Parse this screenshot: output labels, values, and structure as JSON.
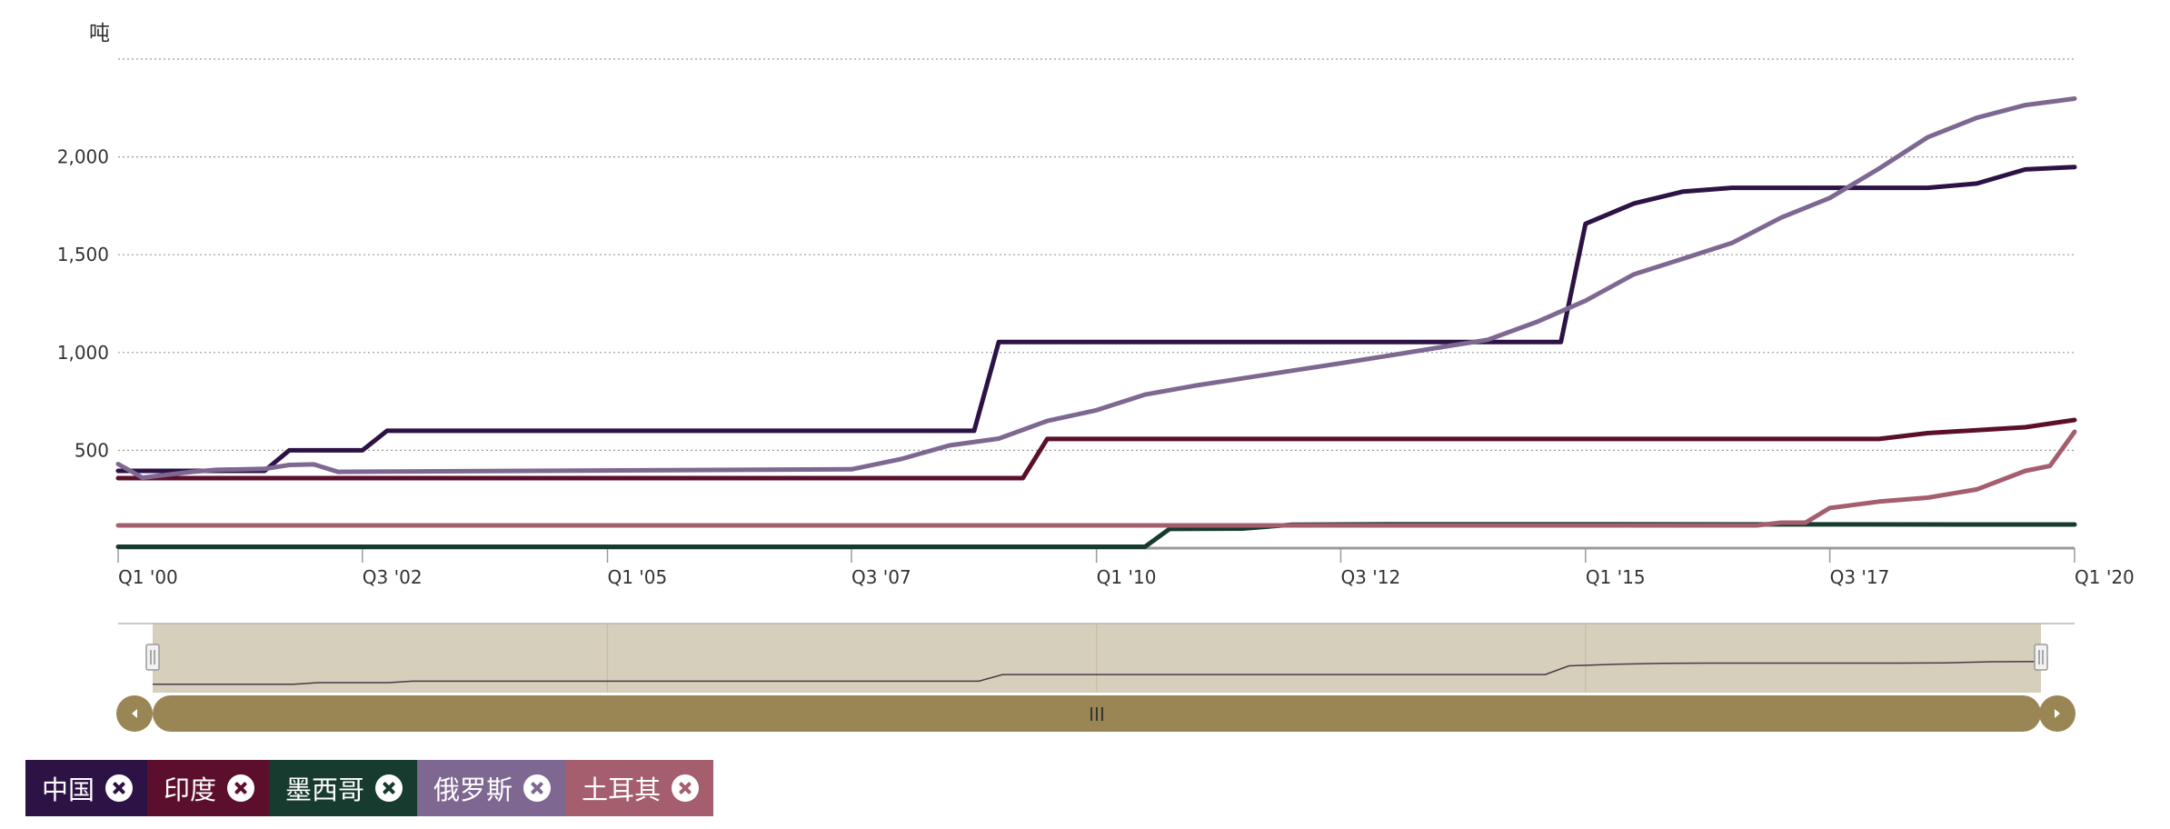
{
  "chart_data": {
    "type": "line",
    "unit_label": "吨",
    "ylim": [
      0,
      2500
    ],
    "y_ticks": [
      {
        "value": 500,
        "label": "500"
      },
      {
        "value": 1000,
        "label": "1,000"
      },
      {
        "value": 1500,
        "label": "1,500"
      },
      {
        "value": 2000,
        "label": "2,000"
      }
    ],
    "x_range": [
      "2000-01-01",
      "2020-01-01"
    ],
    "x_ticks": [
      {
        "date": "2000-01-01",
        "label": "Q1 '00"
      },
      {
        "date": "2002-07-01",
        "label": "Q3 '02"
      },
      {
        "date": "2005-01-01",
        "label": "Q1 '05"
      },
      {
        "date": "2007-07-01",
        "label": "Q3 '07"
      },
      {
        "date": "2010-01-01",
        "label": "Q1 '10"
      },
      {
        "date": "2012-07-01",
        "label": "Q3 '12"
      },
      {
        "date": "2015-01-01",
        "label": "Q1 '15"
      },
      {
        "date": "2017-07-01",
        "label": "Q3 '17"
      },
      {
        "date": "2020-01-01",
        "label": "Q1 '20"
      }
    ],
    "grid": "horizontal dotted",
    "legend_position": "bottom-left",
    "series": [
      {
        "name": "中国",
        "color": "#2d1245",
        "points": [
          [
            "2000-01-01",
            395
          ],
          [
            "2001-07-01",
            395
          ],
          [
            "2001-10-01",
            500
          ],
          [
            "2002-07-01",
            500
          ],
          [
            "2002-10-01",
            600
          ],
          [
            "2008-10-01",
            600
          ],
          [
            "2009-01-01",
            1054
          ],
          [
            "2014-10-01",
            1054
          ],
          [
            "2015-01-01",
            1658
          ],
          [
            "2015-07-01",
            1762
          ],
          [
            "2016-01-01",
            1823
          ],
          [
            "2016-07-01",
            1842
          ],
          [
            "2018-07-01",
            1842
          ],
          [
            "2019-01-01",
            1864
          ],
          [
            "2019-07-01",
            1936
          ],
          [
            "2020-01-01",
            1948
          ]
        ]
      },
      {
        "name": "印度",
        "color": "#5c0f2c",
        "points": [
          [
            "2000-01-01",
            358
          ],
          [
            "2009-04-01",
            358
          ],
          [
            "2009-07-01",
            558
          ],
          [
            "2018-01-01",
            558
          ],
          [
            "2018-07-01",
            588
          ],
          [
            "2019-07-01",
            618
          ],
          [
            "2020-01-01",
            655
          ]
        ]
      },
      {
        "name": "墨西哥",
        "color": "#173b2f",
        "points": [
          [
            "2000-01-01",
            7
          ],
          [
            "2010-07-01",
            7
          ],
          [
            "2010-10-01",
            98
          ],
          [
            "2011-07-01",
            100
          ],
          [
            "2012-01-01",
            120
          ],
          [
            "2013-01-01",
            122
          ],
          [
            "2020-01-01",
            121
          ]
        ]
      },
      {
        "name": "俄罗斯",
        "color": "#7e6791",
        "points": [
          [
            "2000-01-01",
            430
          ],
          [
            "2000-04-01",
            360
          ],
          [
            "2000-10-01",
            390
          ],
          [
            "2001-01-01",
            400
          ],
          [
            "2001-07-01",
            405
          ],
          [
            "2001-10-01",
            425
          ],
          [
            "2002-01-01",
            428
          ],
          [
            "2002-04-01",
            390
          ],
          [
            "2007-07-01",
            403
          ],
          [
            "2008-01-01",
            455
          ],
          [
            "2008-07-01",
            525
          ],
          [
            "2009-01-01",
            560
          ],
          [
            "2009-07-01",
            650
          ],
          [
            "2010-01-01",
            705
          ],
          [
            "2010-07-01",
            785
          ],
          [
            "2011-01-01",
            830
          ],
          [
            "2011-07-01",
            868
          ],
          [
            "2012-01-01",
            907
          ],
          [
            "2012-07-01",
            945
          ],
          [
            "2013-01-01",
            985
          ],
          [
            "2013-07-01",
            1025
          ],
          [
            "2014-01-01",
            1065
          ],
          [
            "2014-07-01",
            1155
          ],
          [
            "2015-01-01",
            1265
          ],
          [
            "2015-07-01",
            1400
          ],
          [
            "2016-01-01",
            1480
          ],
          [
            "2016-07-01",
            1560
          ],
          [
            "2017-01-01",
            1690
          ],
          [
            "2017-07-01",
            1790
          ],
          [
            "2018-01-01",
            1940
          ],
          [
            "2018-07-01",
            2100
          ],
          [
            "2019-01-01",
            2200
          ],
          [
            "2019-07-01",
            2265
          ],
          [
            "2020-01-01",
            2298
          ]
        ]
      },
      {
        "name": "土耳其",
        "color": "#a45e6e",
        "points": [
          [
            "2000-01-01",
            116
          ],
          [
            "2016-10-01",
            116
          ],
          [
            "2017-01-01",
            130
          ],
          [
            "2017-04-01",
            130
          ],
          [
            "2017-07-01",
            205
          ],
          [
            "2018-01-01",
            238
          ],
          [
            "2018-07-01",
            258
          ],
          [
            "2019-01-01",
            300
          ],
          [
            "2019-07-01",
            395
          ],
          [
            "2019-10-01",
            420
          ],
          [
            "2020-01-01",
            595
          ]
        ]
      }
    ]
  },
  "navigator": {
    "series_name": "中国",
    "scrollbar_grip": "III",
    "colors": {
      "mask_fill": "#d6cfbb",
      "scrollbar_thumb": "#998654",
      "outline": "#b5b5b5",
      "line": "#4a3a48"
    }
  },
  "legend": {
    "items": [
      {
        "label": "中国",
        "color": "#2d1245"
      },
      {
        "label": "印度",
        "color": "#5c0f2c"
      },
      {
        "label": "墨西哥",
        "color": "#173b2f"
      },
      {
        "label": "俄罗斯",
        "color": "#7e6791"
      },
      {
        "label": "土耳其",
        "color": "#a45e6e"
      }
    ]
  }
}
